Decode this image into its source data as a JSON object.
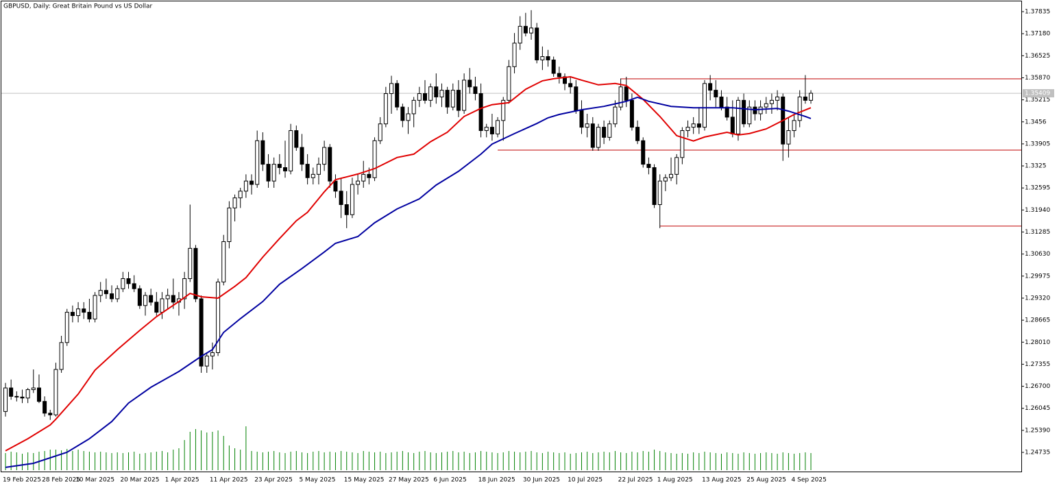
{
  "chart_data": {
    "type": "candlestick",
    "title": "GBPUSD, Daily:  Great Britain Pound vs US Dollar",
    "categories": [
      "19 Feb 2025",
      null,
      null,
      null,
      null,
      null,
      null,
      "28 Feb 2025",
      null,
      null,
      null,
      null,
      null,
      "10 Mar 2025",
      null,
      null,
      null,
      null,
      null,
      null,
      null,
      "20 Mar 2025",
      null,
      null,
      null,
      null,
      null,
      null,
      null,
      "1 Apr 2025",
      null,
      null,
      null,
      null,
      null,
      null,
      null,
      "11 Apr 2025",
      null,
      null,
      null,
      null,
      null,
      null,
      null,
      "23 Apr 2025",
      null,
      null,
      null,
      null,
      null,
      null,
      null,
      "5 May 2025",
      null,
      null,
      null,
      null,
      null,
      null,
      null,
      "15 May 2025",
      null,
      null,
      null,
      null,
      null,
      null,
      null,
      "27 May 2025",
      null,
      null,
      null,
      null,
      null,
      null,
      null,
      "6 Jun 2025",
      null,
      null,
      null,
      null,
      null,
      null,
      null,
      "18 Jun 2025",
      null,
      null,
      null,
      null,
      null,
      null,
      null,
      "30 Jun 2025",
      null,
      null,
      null,
      null,
      null,
      null,
      null,
      "10 Jul 2025",
      null,
      null,
      null,
      null,
      null,
      null,
      null,
      null,
      "22 Jul 2025",
      null,
      null,
      null,
      null,
      null,
      null,
      "1 Aug 2025",
      null,
      null,
      null,
      null,
      null,
      null,
      null,
      "13 Aug 2025",
      null,
      null,
      null,
      null,
      null,
      null,
      null,
      "25 Aug 2025",
      null,
      null,
      null,
      null,
      null,
      null,
      null,
      "4 Sep 2025",
      null,
      null,
      null
    ],
    "open": [
      1.2595,
      1.2665,
      1.264,
      1.2638,
      1.2635,
      1.266,
      1.2665,
      1.2625,
      1.259,
      1.2585,
      1.272,
      1.28,
      1.289,
      1.288,
      1.29,
      1.289,
      1.287,
      1.294,
      1.2955,
      1.2945,
      1.293,
      1.296,
      1.299,
      1.2975,
      1.296,
      1.291,
      1.294,
      1.292,
      1.289,
      1.293,
      1.294,
      1.292,
      1.293,
      1.299,
      1.308,
      1.293,
      1.273,
      1.276,
      1.277,
      1.298,
      1.31,
      1.32,
      1.323,
      1.325,
      1.328,
      1.327,
      1.34,
      1.333,
      1.328,
      1.333,
      1.332,
      1.331,
      1.343,
      1.338,
      1.333,
      1.329,
      1.33,
      1.333,
      1.338,
      1.328,
      1.325,
      1.321,
      1.318,
      1.327,
      1.328,
      1.33,
      1.329,
      1.34,
      1.345,
      1.354,
      1.357,
      1.35,
      1.346,
      1.348,
      1.352,
      1.354,
      1.352,
      1.356,
      1.353,
      1.355,
      1.35,
      1.355,
      1.349,
      1.358,
      1.356,
      1.354,
      1.343,
      1.344,
      1.342,
      1.346,
      1.352,
      1.362,
      1.369,
      1.374,
      1.372,
      1.3735,
      1.364,
      1.365,
      1.364,
      1.36,
      1.359,
      1.357,
      1.356,
      1.349,
      1.344,
      1.345,
      1.338,
      1.344,
      1.341,
      1.345,
      1.35,
      1.356,
      1.352,
      1.344,
      1.34,
      1.333,
      1.332,
      1.321,
      1.328,
      1.329,
      1.33,
      1.335,
      1.343,
      1.344,
      1.345,
      1.344,
      1.357,
      1.355,
      1.353,
      1.35,
      1.347,
      1.342,
      1.352,
      1.345,
      1.35,
      1.348,
      1.35,
      1.351,
      1.352,
      1.353,
      1.339,
      1.343,
      1.346,
      1.353,
      1.352
    ],
    "high": [
      1.268,
      1.269,
      1.2655,
      1.266,
      1.2665,
      1.272,
      1.2705,
      1.264,
      1.26,
      1.274,
      1.282,
      1.29,
      1.291,
      1.292,
      1.292,
      1.293,
      1.295,
      1.298,
      1.299,
      1.297,
      1.297,
      1.301,
      1.301,
      1.3,
      1.297,
      1.295,
      1.296,
      1.295,
      1.295,
      1.296,
      1.299,
      1.295,
      1.301,
      1.321,
      1.309,
      1.294,
      1.277,
      1.28,
      1.299,
      1.312,
      1.322,
      1.324,
      1.326,
      1.33,
      1.33,
      1.343,
      1.3425,
      1.336,
      1.335,
      1.336,
      1.34,
      1.345,
      1.3445,
      1.342,
      1.336,
      1.332,
      1.335,
      1.34,
      1.339,
      1.33,
      1.329,
      1.325,
      1.329,
      1.33,
      1.334,
      1.332,
      1.341,
      1.347,
      1.356,
      1.3593,
      1.358,
      1.351,
      1.35,
      1.353,
      1.356,
      1.358,
      1.357,
      1.36,
      1.357,
      1.356,
      1.357,
      1.358,
      1.36,
      1.3616,
      1.359,
      1.357,
      1.345,
      1.348,
      1.347,
      1.353,
      1.364,
      1.372,
      1.377,
      1.378,
      1.3788,
      1.375,
      1.368,
      1.367,
      1.365,
      1.362,
      1.36,
      1.359,
      1.358,
      1.352,
      1.348,
      1.347,
      1.345,
      1.346,
      1.346,
      1.352,
      1.3585,
      1.359,
      1.354,
      1.346,
      1.341,
      1.335,
      1.333,
      1.33,
      1.33,
      1.335,
      1.336,
      1.344,
      1.346,
      1.347,
      1.35,
      1.358,
      1.3595,
      1.358,
      1.355,
      1.353,
      1.352,
      1.353,
      1.354,
      1.352,
      1.352,
      1.352,
      1.353,
      1.354,
      1.355,
      1.354,
      1.347,
      1.348,
      1.355,
      1.3595,
      1.355
    ],
    "low": [
      1.258,
      1.263,
      1.2625,
      1.262,
      1.262,
      1.265,
      1.262,
      1.258,
      1.257,
      1.258,
      1.271,
      1.279,
      1.286,
      1.286,
      1.287,
      1.286,
      1.286,
      1.292,
      1.293,
      1.292,
      1.292,
      1.295,
      1.296,
      1.295,
      1.29,
      1.288,
      1.291,
      1.288,
      1.287,
      1.29,
      1.29,
      1.288,
      1.29,
      1.298,
      1.292,
      1.271,
      1.271,
      1.272,
      1.276,
      1.297,
      1.308,
      1.316,
      1.32,
      1.323,
      1.324,
      1.326,
      1.331,
      1.326,
      1.326,
      1.33,
      1.329,
      1.33,
      1.337,
      1.331,
      1.327,
      1.327,
      1.327,
      1.331,
      1.326,
      1.323,
      1.317,
      1.314,
      1.317,
      1.324,
      1.326,
      1.327,
      1.328,
      1.339,
      1.344,
      1.348,
      1.349,
      1.344,
      1.342,
      1.344,
      1.35,
      1.351,
      1.35,
      1.351,
      1.35,
      1.348,
      1.349,
      1.347,
      1.348,
      1.354,
      1.352,
      1.341,
      1.341,
      1.34,
      1.341,
      1.34,
      1.351,
      1.36,
      1.367,
      1.371,
      1.37,
      1.363,
      1.361,
      1.362,
      1.359,
      1.357,
      1.355,
      1.354,
      1.348,
      1.342,
      1.341,
      1.337,
      1.337,
      1.339,
      1.34,
      1.344,
      1.349,
      1.35,
      1.343,
      1.339,
      1.332,
      1.33,
      1.32,
      1.314,
      1.325,
      1.328,
      1.327,
      1.333,
      1.341,
      1.342,
      1.342,
      1.343,
      1.352,
      1.35,
      1.349,
      1.346,
      1.341,
      1.34,
      1.344,
      1.344,
      1.346,
      1.346,
      1.348,
      1.348,
      1.349,
      1.334,
      1.335,
      1.341,
      1.344,
      1.351,
      1.351
    ],
    "close": [
      1.2665,
      1.264,
      1.2638,
      1.2635,
      1.266,
      1.2665,
      1.2625,
      1.259,
      1.2585,
      1.272,
      1.28,
      1.289,
      1.288,
      1.29,
      1.289,
      1.287,
      1.294,
      1.2955,
      1.2945,
      1.293,
      1.296,
      1.299,
      1.2975,
      1.296,
      1.291,
      1.294,
      1.292,
      1.289,
      1.293,
      1.294,
      1.292,
      1.293,
      1.299,
      1.308,
      1.293,
      1.273,
      1.276,
      1.277,
      1.298,
      1.31,
      1.32,
      1.323,
      1.325,
      1.328,
      1.327,
      1.34,
      1.333,
      1.328,
      1.333,
      1.332,
      1.331,
      1.343,
      1.338,
      1.333,
      1.329,
      1.33,
      1.333,
      1.338,
      1.328,
      1.325,
      1.321,
      1.318,
      1.327,
      1.328,
      1.33,
      1.329,
      1.34,
      1.345,
      1.354,
      1.357,
      1.35,
      1.346,
      1.348,
      1.352,
      1.354,
      1.352,
      1.356,
      1.353,
      1.355,
      1.35,
      1.355,
      1.349,
      1.358,
      1.356,
      1.354,
      1.343,
      1.344,
      1.342,
      1.346,
      1.352,
      1.362,
      1.369,
      1.374,
      1.372,
      1.3735,
      1.364,
      1.365,
      1.364,
      1.36,
      1.359,
      1.357,
      1.356,
      1.349,
      1.344,
      1.345,
      1.338,
      1.344,
      1.341,
      1.345,
      1.35,
      1.356,
      1.352,
      1.344,
      1.34,
      1.333,
      1.332,
      1.321,
      1.328,
      1.329,
      1.33,
      1.335,
      1.343,
      1.344,
      1.345,
      1.344,
      1.357,
      1.355,
      1.353,
      1.35,
      1.347,
      1.342,
      1.352,
      1.345,
      1.35,
      1.348,
      1.35,
      1.351,
      1.352,
      1.353,
      1.339,
      1.343,
      1.346,
      1.353,
      1.352,
      1.3541
    ],
    "up_color": "#ffffff",
    "down_color": "#000000",
    "volume": {
      "color": "#008000",
      "values": [
        25,
        27,
        26,
        24,
        26,
        25,
        27,
        28,
        30,
        30,
        29,
        31,
        28,
        30,
        28,
        27,
        26,
        27,
        26,
        25,
        26,
        25,
        26,
        27,
        24,
        25,
        26,
        27,
        28,
        26,
        30,
        32,
        44,
        56,
        60,
        58,
        55,
        56,
        58,
        50,
        36,
        32,
        30,
        64,
        28,
        27,
        26,
        27,
        28,
        26,
        25,
        27,
        28,
        26,
        25,
        27,
        28,
        26,
        27,
        26,
        28,
        27,
        26,
        25,
        28,
        27,
        26,
        27,
        25,
        26,
        27,
        28,
        26,
        25,
        27,
        28,
        26,
        25,
        26,
        27,
        28,
        26,
        27,
        25,
        26,
        28,
        27,
        26,
        25,
        26,
        28,
        27,
        26,
        27,
        28,
        26,
        25,
        27,
        26,
        25,
        26,
        24,
        25,
        26,
        27,
        25,
        26,
        27,
        26,
        28,
        26,
        25,
        27,
        26,
        28,
        27,
        30,
        28,
        26,
        25,
        24,
        25,
        24,
        26,
        25,
        27,
        26,
        25,
        24,
        26,
        25,
        24,
        26,
        25,
        24,
        25,
        26,
        25,
        24,
        26,
        25,
        24,
        25,
        26,
        25
      ]
    },
    "lines": [
      {
        "color": "#e00000",
        "x": [
          0,
          4,
          8,
          9,
          13,
          16,
          20,
          24,
          27,
          31,
          33,
          35,
          38,
          41,
          43,
          46,
          49,
          52,
          54,
          57,
          59,
          63,
          66,
          70,
          73,
          76,
          79,
          82,
          85,
          87,
          90,
          93,
          96,
          98,
          101,
          103,
          106,
          109,
          111,
          114,
          117,
          120,
          123,
          125,
          129,
          131,
          133,
          136,
          139,
          141,
          144
        ],
        "values": [
          1.2478,
          1.2514,
          1.2555,
          1.2572,
          1.2647,
          1.2718,
          1.2779,
          1.2836,
          1.2877,
          1.2922,
          1.2946,
          1.2936,
          1.2932,
          1.2967,
          1.2993,
          1.3054,
          1.3109,
          1.3162,
          1.3187,
          1.3248,
          1.3284,
          1.3301,
          1.3317,
          1.335,
          1.336,
          1.3397,
          1.3425,
          1.3472,
          1.3496,
          1.3507,
          1.3513,
          1.3553,
          1.3578,
          1.3584,
          1.359,
          1.358,
          1.3566,
          1.357,
          1.3564,
          1.3523,
          1.3472,
          1.3415,
          1.3399,
          1.3411,
          1.3425,
          1.3417,
          1.3421,
          1.3435,
          1.346,
          1.3478,
          1.3498
        ]
      },
      {
        "color": "#0000a0",
        "x": [
          0,
          5,
          11,
          15,
          19,
          22,
          26,
          31,
          35,
          37,
          39,
          42,
          46,
          49,
          53,
          57,
          59,
          63,
          66,
          70,
          74,
          77,
          81,
          85,
          87,
          91,
          95,
          97,
          99,
          103,
          107,
          111,
          113,
          115,
          119,
          123,
          126,
          130,
          134,
          138,
          140,
          143,
          144
        ],
        "values": [
          1.2429,
          1.2441,
          1.2474,
          1.2514,
          1.2565,
          1.262,
          1.2667,
          1.2714,
          1.2759,
          1.2779,
          1.283,
          1.2871,
          1.2922,
          1.2973,
          1.302,
          1.3069,
          1.3095,
          1.3115,
          1.3156,
          1.3197,
          1.3227,
          1.3268,
          1.3309,
          1.336,
          1.339,
          1.3421,
          1.3451,
          1.3468,
          1.3478,
          1.3492,
          1.3502,
          1.3517,
          1.3529,
          1.3517,
          1.3502,
          1.3498,
          1.3498,
          1.3498,
          1.3492,
          1.3496,
          1.3488,
          1.3472,
          1.3466
        ]
      }
    ],
    "levels": [
      {
        "x": 110,
        "value": 1.3584
      },
      {
        "x": 88,
        "value": 1.3372
      },
      {
        "x": 117,
        "value": 1.3146
      }
    ],
    "level_color": "#c00000",
    "last_price": 1.35409,
    "ylim": [
      1.24165,
      1.38141
    ],
    "yticks": [
      1.37835,
      {
        "value": 1.3718,
        "label": "1.37180"
      },
      1.36525,
      {
        "value": 1.3587,
        "label": "1.35870"
      },
      1.35215,
      1.3456,
      1.33905,
      1.3325,
      1.32595,
      {
        "value": 1.3194,
        "label": "1.31940"
      },
      1.31285,
      {
        "value": 1.3063,
        "label": "1.30630"
      },
      1.29975,
      {
        "value": 1.2932,
        "label": "1.29320"
      },
      1.28665,
      {
        "value": 1.2801,
        "label": "1.28010"
      },
      1.27355,
      {
        "value": 1.267,
        "label": "1.26700"
      },
      1.26045,
      {
        "value": 1.2539,
        "label": "1.25390"
      },
      1.24735
    ],
    "grid": false
  }
}
